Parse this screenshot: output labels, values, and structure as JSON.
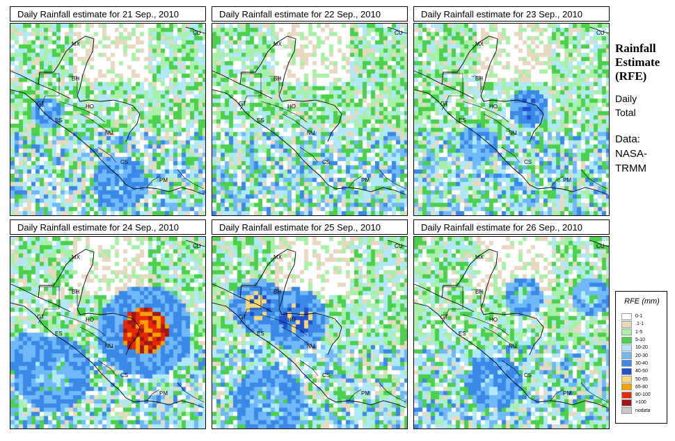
{
  "panels": [
    {
      "title": "Daily Rainfall estimate for  21 Sep., 2010",
      "seed": 21,
      "blobs": [
        [
          0.55,
          0.82,
          0.07,
          4
        ],
        [
          0.18,
          0.45,
          0.04,
          4
        ]
      ]
    },
    {
      "title": "Daily Rainfall estimate for  22 Sep., 2010",
      "seed": 22,
      "blobs": []
    },
    {
      "title": "Daily Rainfall estimate for  23 Sep., 2010",
      "seed": 23,
      "blobs": [
        [
          0.58,
          0.43,
          0.05,
          5
        ],
        [
          0.32,
          0.62,
          0.05,
          3
        ]
      ]
    },
    {
      "title": "Daily Rainfall estimate for  24 Sep., 2010",
      "seed": 24,
      "blobs": [
        [
          0.68,
          0.48,
          0.12,
          9
        ],
        [
          0.2,
          0.7,
          0.1,
          3
        ],
        [
          0.1,
          0.6,
          0.06,
          3
        ]
      ]
    },
    {
      "title": "Daily Rainfall estimate for  25 Sep., 2010",
      "seed": 25,
      "blobs": [
        [
          0.22,
          0.35,
          0.07,
          6
        ],
        [
          0.42,
          0.42,
          0.08,
          6
        ],
        [
          0.28,
          0.85,
          0.09,
          3
        ]
      ]
    },
    {
      "title": "Daily Rainfall estimate for  26 Sep., 2010",
      "seed": 26,
      "blobs": [
        [
          0.4,
          0.75,
          0.07,
          4
        ],
        [
          0.55,
          0.3,
          0.05,
          3
        ],
        [
          0.9,
          0.3,
          0.05,
          3
        ]
      ]
    }
  ],
  "countries": [
    "MX",
    "BH",
    "GT",
    "HO",
    "ES",
    "NU",
    "CS",
    "PM",
    "CU"
  ],
  "side": {
    "title_line1": "Rainfall",
    "title_line2": "Estimate",
    "title_line3": "(RFE)",
    "sub1": "Daily",
    "sub2": "Total",
    "data1": "Data:",
    "data2": "NASA-",
    "data3": "TRMM"
  },
  "legend": {
    "title": "RFE (mm)",
    "classes": [
      {
        "label": "0-1",
        "color": "#ffffff"
      },
      {
        "label": ".1-1",
        "color": "#e8d8c0"
      },
      {
        "label": "1-5",
        "color": "#a8f0a8"
      },
      {
        "label": "5-10",
        "color": "#4ad04a"
      },
      {
        "label": "10-20",
        "color": "#b0e8f8"
      },
      {
        "label": "20-30",
        "color": "#70b8f8"
      },
      {
        "label": "30-40",
        "color": "#3a88e8"
      },
      {
        "label": "40-50",
        "color": "#2050d0"
      },
      {
        "label": "50-65",
        "color": "#f8d878"
      },
      {
        "label": "65-80",
        "color": "#f8a000"
      },
      {
        "label": "80-100",
        "color": "#e82800"
      },
      {
        "label": ">100",
        "color": "#a01818"
      },
      {
        "label": "nodata",
        "color": "#c8c8c8"
      }
    ]
  }
}
